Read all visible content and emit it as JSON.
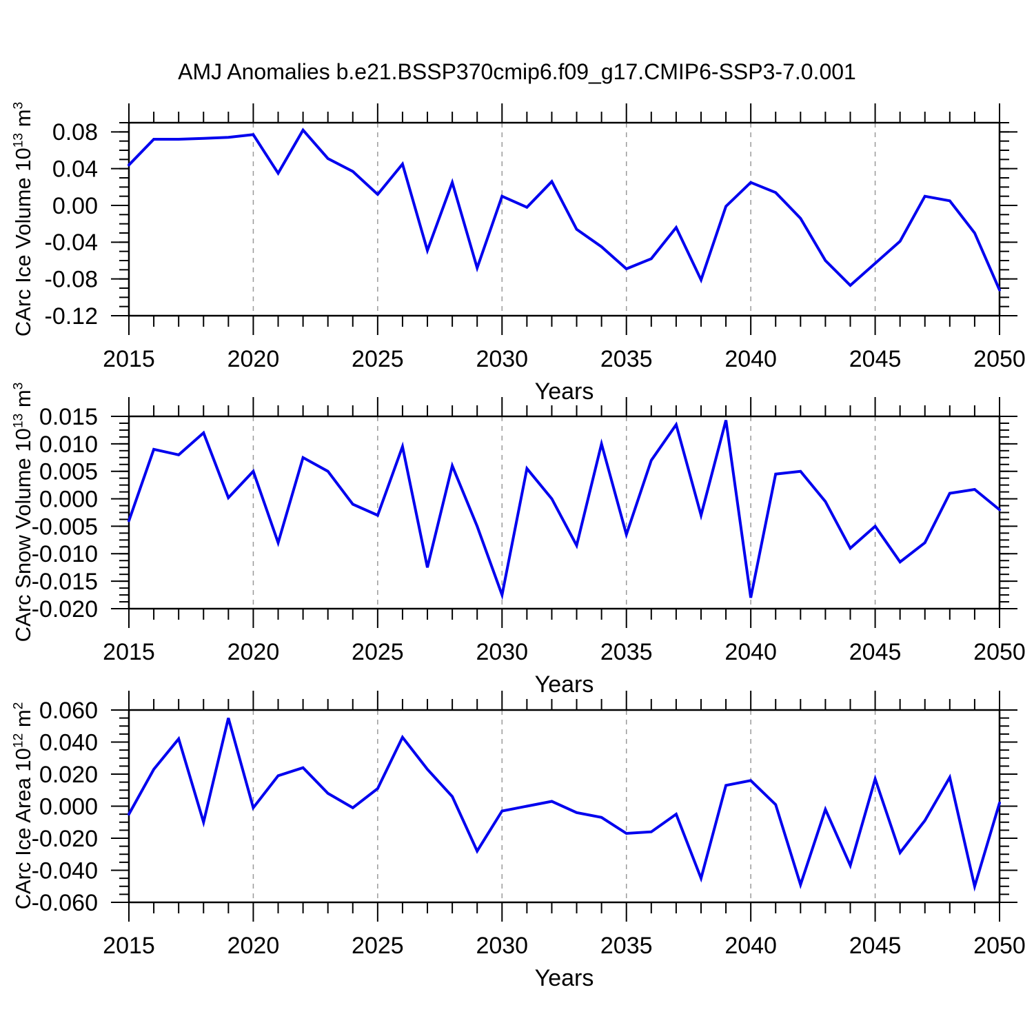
{
  "title": "AMJ Anomalies b.e21.BSSP370cmip6.f09_g17.CMIP6-SSP3-7.0.001",
  "colors": {
    "line": "#0000EE",
    "grid": "#999999",
    "axis": "#000000",
    "background": "#ffffff"
  },
  "chart_data": [
    {
      "type": "line",
      "panel": "ice-volume",
      "ylabel": "CArc Ice Volume 10^13 m^3",
      "ylabel_parts": {
        "base": "CArc Ice Volume 10",
        "exp": "13",
        "unit": " m",
        "unit_exp": "3"
      },
      "xlabel": "Years",
      "x": [
        2015,
        2016,
        2017,
        2018,
        2019,
        2020,
        2021,
        2022,
        2023,
        2024,
        2025,
        2026,
        2027,
        2028,
        2029,
        2030,
        2031,
        2032,
        2033,
        2034,
        2035,
        2036,
        2037,
        2038,
        2039,
        2040,
        2041,
        2042,
        2043,
        2044,
        2045,
        2046,
        2047,
        2048,
        2049,
        2050
      ],
      "values": [
        0.044,
        0.072,
        0.072,
        0.073,
        0.074,
        0.077,
        0.035,
        0.082,
        0.051,
        0.037,
        0.012,
        0.045,
        -0.049,
        0.025,
        -0.068,
        0.01,
        -0.002,
        0.026,
        -0.026,
        -0.045,
        -0.069,
        -0.058,
        -0.024,
        -0.081,
        -0.001,
        0.025,
        0.014,
        -0.014,
        -0.06,
        -0.087,
        -0.063,
        -0.039,
        0.01,
        0.005,
        -0.03,
        -0.092
      ],
      "ylim": [
        -0.12,
        0.09
      ],
      "ytick_values": [
        0.08,
        0.04,
        0.0,
        -0.04,
        -0.08,
        -0.12
      ],
      "ytick_labels": [
        "0.08",
        "0.04",
        "0.00",
        "-0.04",
        "-0.08",
        "-0.12"
      ],
      "yminor_step": 0.01,
      "xticks": [
        2015,
        2020,
        2025,
        2030,
        2035,
        2040,
        2045,
        2050
      ],
      "xtick_labels": [
        "2015",
        "2020",
        "2025",
        "2030",
        "2035",
        "2040",
        "2045",
        "2050"
      ],
      "xminor_step": 1,
      "grid_years": [
        2020,
        2025,
        2030,
        2035,
        2040,
        2045
      ]
    },
    {
      "type": "line",
      "panel": "snow-volume",
      "ylabel": "CArc Snow Volume 10^13 m^3",
      "ylabel_parts": {
        "base": "CArc Snow Volume 10",
        "exp": "13",
        "unit": " m",
        "unit_exp": "3"
      },
      "xlabel": "Years",
      "x": [
        2015,
        2016,
        2017,
        2018,
        2019,
        2020,
        2021,
        2022,
        2023,
        2024,
        2025,
        2026,
        2027,
        2028,
        2029,
        2030,
        2031,
        2032,
        2033,
        2034,
        2035,
        2036,
        2037,
        2038,
        2039,
        2040,
        2041,
        2042,
        2043,
        2044,
        2045,
        2046,
        2047,
        2048,
        2049,
        2050
      ],
      "values": [
        -0.004,
        0.009,
        0.008,
        0.012,
        0.0002,
        0.005,
        -0.008,
        0.0075,
        0.005,
        -0.001,
        -0.003,
        0.0095,
        -0.0125,
        0.006,
        -0.005,
        -0.0175,
        0.0055,
        0.0,
        -0.0085,
        0.01,
        -0.0065,
        0.007,
        0.0135,
        -0.003,
        0.0143,
        -0.018,
        0.0045,
        0.005,
        -0.0005,
        -0.009,
        -0.005,
        -0.0115,
        -0.008,
        0.001,
        0.0017,
        -0.002
      ],
      "ylim": [
        -0.02,
        0.015
      ],
      "ytick_values": [
        0.015,
        0.01,
        0.005,
        0.0,
        -0.005,
        -0.01,
        -0.015,
        -0.02
      ],
      "ytick_labels": [
        "0.015",
        "0.010",
        "0.005",
        "0.000",
        "-0.005",
        "-0.010",
        "-0.015",
        "-0.020"
      ],
      "yminor_step": 0.00125,
      "xticks": [
        2015,
        2020,
        2025,
        2030,
        2035,
        2040,
        2045,
        2050
      ],
      "xtick_labels": [
        "2015",
        "2020",
        "2025",
        "2030",
        "2035",
        "2040",
        "2045",
        "2050"
      ],
      "xminor_step": 1,
      "grid_years": [
        2020,
        2025,
        2030,
        2035,
        2040,
        2045
      ]
    },
    {
      "type": "line",
      "panel": "ice-area",
      "ylabel": "CArc Ice Area 10^12 m^2",
      "ylabel_parts": {
        "base": "CArc Ice Area 10",
        "exp": "12",
        "unit": " m",
        "unit_exp": "2"
      },
      "xlabel": "Years",
      "x": [
        2015,
        2016,
        2017,
        2018,
        2019,
        2020,
        2021,
        2022,
        2023,
        2024,
        2025,
        2026,
        2027,
        2028,
        2029,
        2030,
        2031,
        2032,
        2033,
        2034,
        2035,
        2036,
        2037,
        2038,
        2039,
        2040,
        2041,
        2042,
        2043,
        2044,
        2045,
        2046,
        2047,
        2048,
        2049,
        2050
      ],
      "values": [
        -0.005,
        0.023,
        0.042,
        -0.01,
        0.055,
        -0.001,
        0.019,
        0.024,
        0.008,
        -0.001,
        0.011,
        0.043,
        0.023,
        0.006,
        -0.028,
        -0.003,
        0.0,
        0.003,
        -0.004,
        -0.007,
        -0.017,
        -0.016,
        -0.005,
        -0.045,
        0.013,
        0.016,
        0.001,
        -0.049,
        -0.002,
        -0.037,
        0.017,
        -0.029,
        -0.009,
        0.018,
        -0.05,
        0.002
      ],
      "ylim": [
        -0.06,
        0.06
      ],
      "ytick_values": [
        0.06,
        0.04,
        0.02,
        0.0,
        -0.02,
        -0.04,
        -0.06
      ],
      "ytick_labels": [
        "0.060",
        "0.040",
        "0.020",
        "0.000",
        "-0.020",
        "-0.040",
        "-0.060"
      ],
      "yminor_step": 0.005,
      "xticks": [
        2015,
        2020,
        2025,
        2030,
        2035,
        2040,
        2045,
        2050
      ],
      "xtick_labels": [
        "2015",
        "2020",
        "2025",
        "2030",
        "2035",
        "2040",
        "2045",
        "2050"
      ],
      "xminor_step": 1,
      "grid_years": [
        2020,
        2025,
        2030,
        2035,
        2040,
        2045
      ]
    }
  ]
}
